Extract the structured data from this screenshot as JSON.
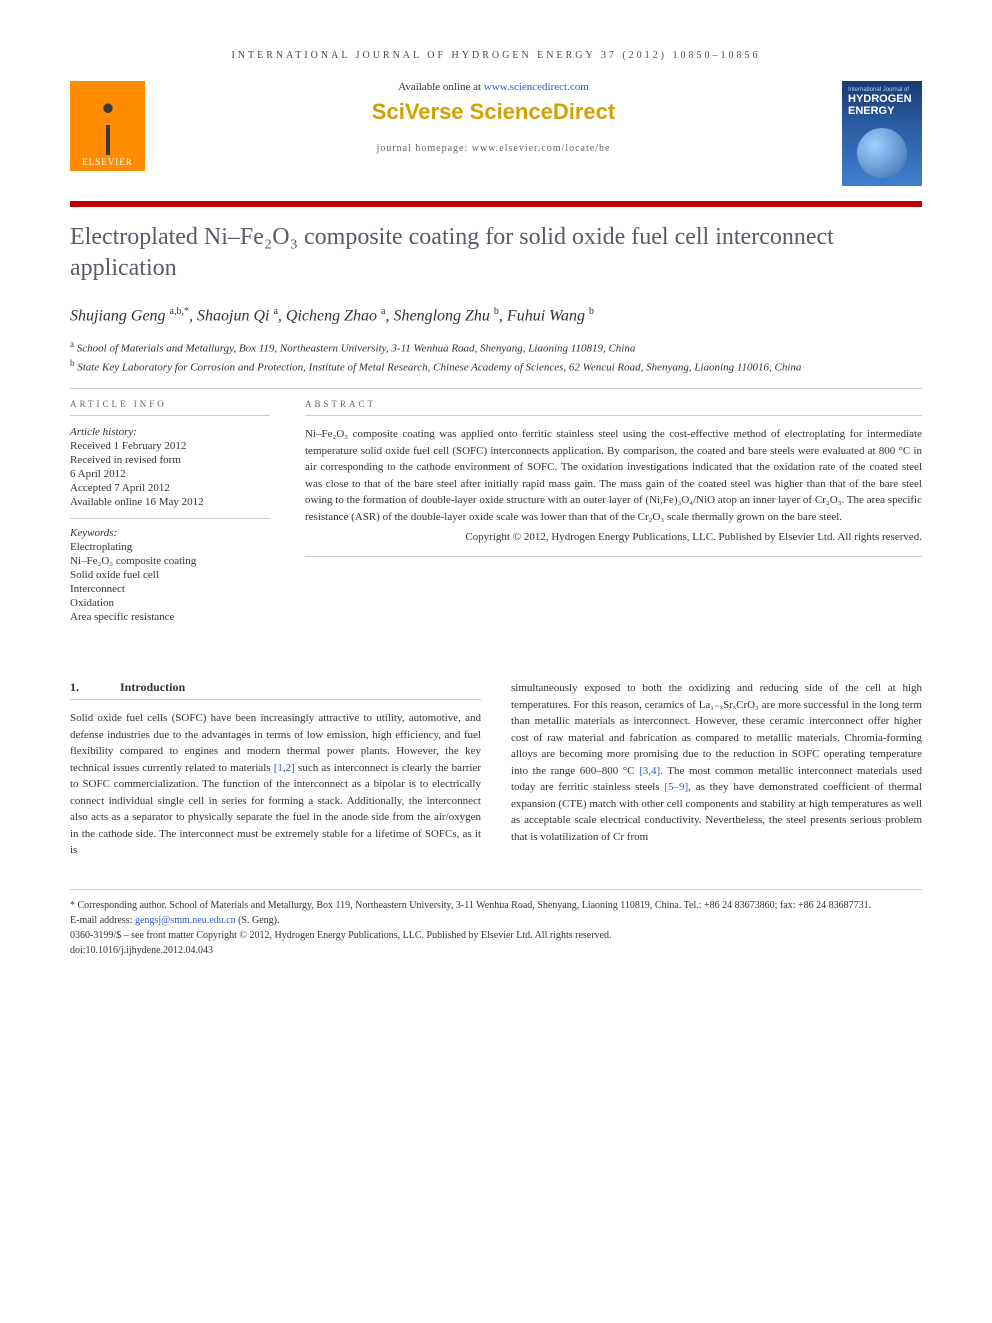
{
  "journal_header": "INTERNATIONAL JOURNAL OF HYDROGEN ENERGY 37 (2012) 10850–10856",
  "publisher": {
    "name": "ELSEVIER",
    "available_text": "Available online at ",
    "available_url": "www.sciencedirect.com",
    "platform": "SciVerse ScienceDirect",
    "homepage_label": "journal homepage: www.elsevier.com/locate/he"
  },
  "cover": {
    "small": "International Journal of",
    "big1": "HYDROGEN",
    "big2": "ENERGY"
  },
  "title": "Electroplated Ni–Fe₂O₃ composite coating for solid oxide fuel cell interconnect application",
  "authors_html": "Shujiang Geng <sup>a,b,*</sup>, Shaojun Qi <sup>a</sup>, Qicheng Zhao <sup>a</sup>, Shenglong Zhu <sup>b</sup>, Fuhui Wang <sup>b</sup>",
  "affiliations": {
    "a": "School of Materials and Metallurgy, Box 119, Northeastern University, 3-11 Wenhua Road, Shenyang, Liaoning 110819, China",
    "b": "State Key Laboratory for Corrosion and Protection, Institute of Metal Research, Chinese Academy of Sciences, 62 Wencui Road, Shenyang, Liaoning 110016, China"
  },
  "article_info": {
    "heading": "ARTICLE INFO",
    "history_label": "Article history:",
    "received": "Received 1 February 2012",
    "revised1": "Received in revised form",
    "revised2": "6 April 2012",
    "accepted": "Accepted 7 April 2012",
    "online": "Available online 16 May 2012",
    "keywords_label": "Keywords:",
    "keywords": [
      "Electroplating",
      "Ni–Fe₂O₃ composite coating",
      "Solid oxide fuel cell",
      "Interconnect",
      "Oxidation",
      "Area specific resistance"
    ]
  },
  "abstract": {
    "heading": "ABSTRACT",
    "text": "Ni–Fe₂O₃ composite coating was applied onto ferritic stainless steel using the cost-effective method of electroplating for intermediate temperature solid oxide fuel cell (SOFC) interconnects application. By comparison, the coated and bare steels were evaluated at 800 °C in air corresponding to the cathode environment of SOFC. The oxidation investigations indicated that the oxidation rate of the coated steel was close to that of the bare steel after initially rapid mass gain. The mass gain of the coated steel was higher than that of the bare steel owing to the formation of double-layer oxide structure with an outer layer of (Ni,Fe)₃O₄/NiO atop an inner layer of Cr₂O₃. The area specific resistance (ASR) of the double-layer oxide scale was lower than that of the Cr₂O₃ scale thermally grown on the bare steel.",
    "copyright": "Copyright © 2012, Hydrogen Energy Publications, LLC. Published by Elsevier Ltd. All rights reserved."
  },
  "section1": {
    "num": "1.",
    "title": "Introduction",
    "col1": "Solid oxide fuel cells (SOFC) have been increasingly attractive to utility, automotive, and defense industries due to the advantages in terms of low emission, high efficiency, and fuel flexibility compared to engines and modern thermal power plants. However, the key technical issues currently related to materials [1,2] such as interconnect is clearly the barrier to SOFC commercialization. The function of the interconnect as a bipolar is to electrically connect individual single cell in series for forming a stack. Additionally, the interconnect also acts as a separator to physically separate the fuel in the anode side from the air/oxygen in the cathode side. The interconnect must be extremely stable for a lifetime of SOFCs, as it is",
    "col2": "simultaneously exposed to both the oxidizing and reducing side of the cell at high temperatures. For this reason, ceramics of La₁₋ₓSrₓCrO₃ are more successful in the long term than metallic materials as interconnect. However, these ceramic interconnect offer higher cost of raw material and fabrication as compared to metallic materials. Chromia-forming alloys are becoming more promising due to the reduction in SOFC operating temperature into the range 600–800 °C [3,4]. The most common metallic interconnect materials used today are ferritic stainless steels [5–9], as they have demonstrated coefficient of thermal expansion (CTE) match with other cell components and stability at high temperatures as well as acceptable scale electrical conductivity. Nevertheless, the steel presents serious problem that is volatilization of Cr from"
  },
  "refs": {
    "r12": "[1,2]",
    "r34": "[3,4]",
    "r59": "[5–9]"
  },
  "footnotes": {
    "corresponding": "* Corresponding author. School of Materials and Metallurgy, Box 119, Northeastern University, 3-11 Wenhua Road, Shenyang, Liaoning 110819, China. Tel.: +86 24 83673860; fax: +86 24 83687731.",
    "email_label": "E-mail address: ",
    "email": "gengsj@smm.neu.edu.cn",
    "email_suffix": " (S. Geng).",
    "issn": "0360-3199/$ – see front matter Copyright © 2012, Hydrogen Energy Publications, LLC. Published by Elsevier Ltd. All rights reserved.",
    "doi": "doi:10.1016/j.ijhydene.2012.04.043"
  },
  "colors": {
    "title_bar": "#c00000",
    "elsevier_orange": "#ff8c00",
    "sciverse_gold": "#d4a000",
    "link_blue": "#2b5dc9",
    "title_gray": "#5a5a6a"
  }
}
